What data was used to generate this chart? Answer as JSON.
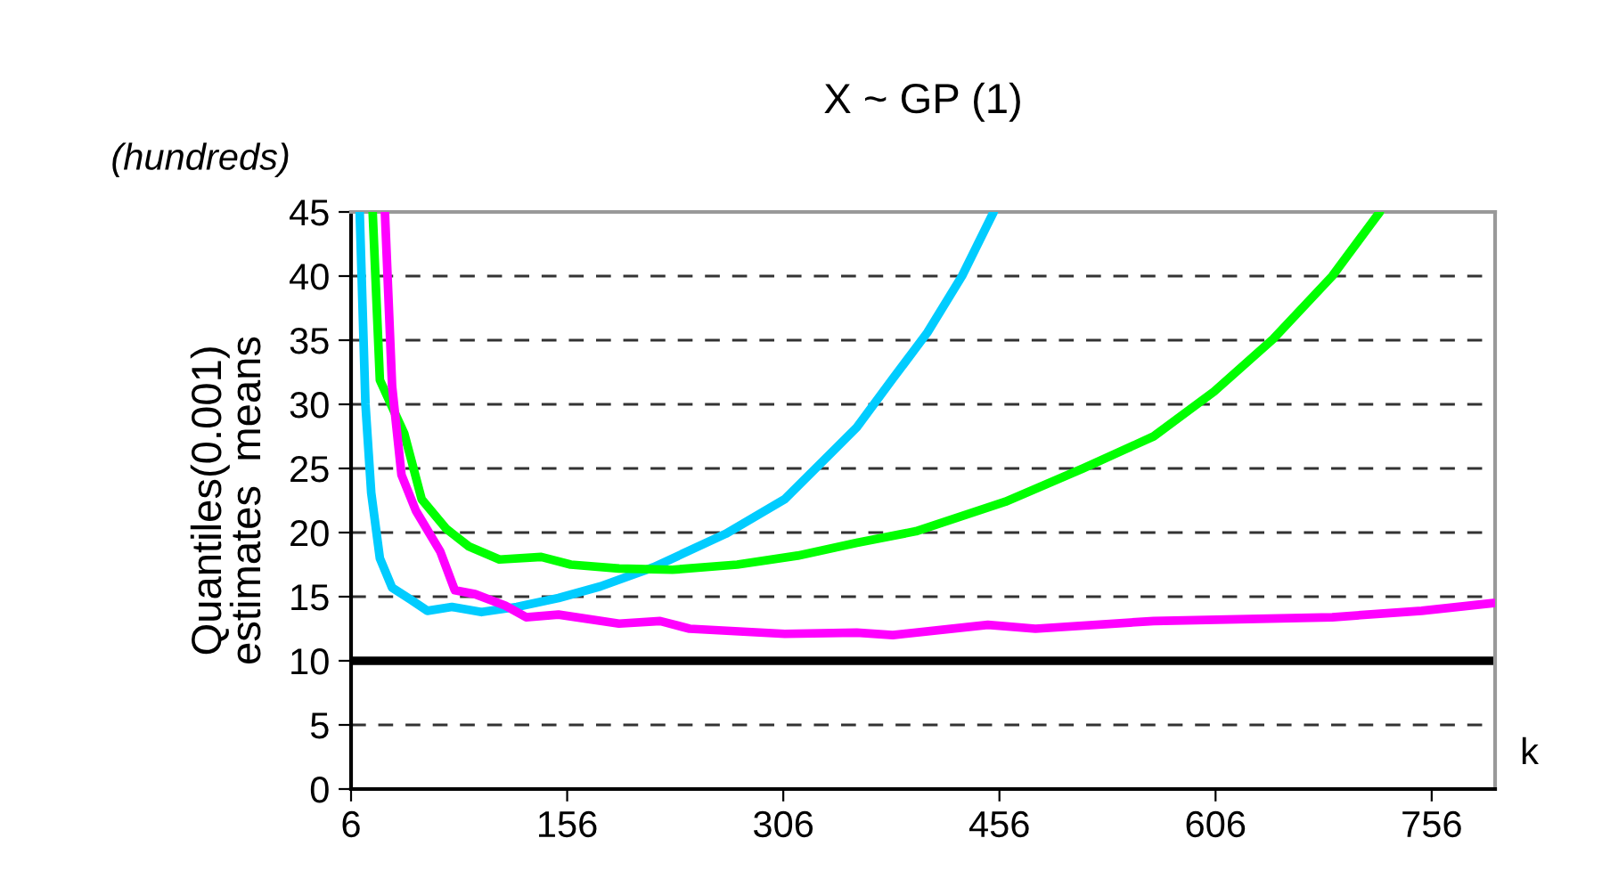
{
  "chart_data": {
    "type": "line",
    "title": "X ~ GP (1)",
    "xlabel": "k",
    "ylabel": "Quantiles(0.001)\nestimates  means",
    "annotations": [
      "(hundreds)"
    ],
    "xlim": [
      6,
      800
    ],
    "xticks": [
      6,
      156,
      306,
      456,
      606,
      756
    ],
    "ylim": [
      0,
      45
    ],
    "yticks": [
      0,
      5,
      10,
      15,
      20,
      25,
      30,
      35,
      40,
      45
    ],
    "grid": "y",
    "legend": false,
    "marker": "none",
    "line_style": "solid",
    "ref_lines": [
      {
        "axis": "y",
        "value": 10,
        "label": null,
        "color": "#000000",
        "line_style": "solid"
      }
    ],
    "series": [
      {
        "color": "#00ccff",
        "x": [
          12,
          16,
          20,
          26,
          34.5,
          47,
          59,
          76,
          96.5,
          121,
          150,
          179,
          216,
          266,
          307,
          357,
          382,
          406,
          430,
          452
        ],
        "values": [
          45,
          30.0,
          23.1,
          18.0,
          15.7,
          14.8,
          13.9,
          14.2,
          13.8,
          14.2,
          14.9,
          15.8,
          17.3,
          19.9,
          22.6,
          28.2,
          32,
          35.6,
          40,
          45
        ]
      },
      {
        "color": "#00ff00",
        "x": [
          21,
          26,
          43,
          55,
          72,
          88,
          109,
          138,
          158.5,
          192,
          229,
          274,
          316,
          357,
          398,
          460,
          514,
          563,
          605,
          646,
          687,
          720
        ],
        "values": [
          45,
          31.9,
          27.7,
          22.6,
          20.3,
          18.9,
          17.9,
          18.1,
          17.5,
          17.2,
          17.1,
          17.5,
          18.2,
          19.2,
          20.1,
          22.4,
          25.0,
          27.5,
          31.0,
          35.1,
          40.0,
          45
        ]
      },
      {
        "color": "#ff00ff",
        "x": [
          29.5,
          34.5,
          41,
          51,
          68,
          78,
          92,
          113,
          127.5,
          150,
          192,
          220.5,
          241,
          307,
          357,
          382,
          448,
          481,
          563,
          687,
          749,
          799
        ],
        "values": [
          45,
          31.4,
          24.5,
          21.7,
          18.5,
          15.5,
          15.2,
          14.3,
          13.4,
          13.6,
          12.9,
          13.1,
          12.5,
          12.1,
          12.2,
          12.0,
          12.8,
          12.5,
          13.1,
          13.4,
          13.9,
          14.5
        ]
      }
    ]
  }
}
